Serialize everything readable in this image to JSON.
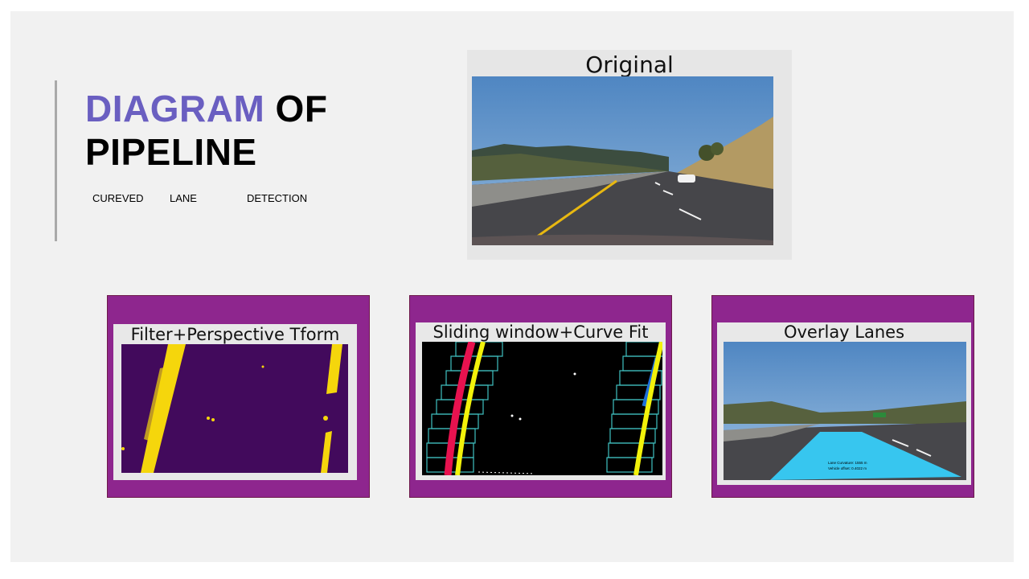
{
  "slide": {
    "title_highlight": "DIAGRAM",
    "title_rest": " OF",
    "title_line2": "PIPELINE",
    "subtitle_words": [
      "CUREVED",
      "LANE",
      "DETECTION"
    ]
  },
  "original": {
    "caption": "Original"
  },
  "stages": [
    {
      "caption": "Filter+Perspective Tform"
    },
    {
      "caption": "Sliding window+Curve Fit"
    },
    {
      "caption": "Overlay Lanes",
      "overlay_text": [
        "Lane Curvature: 1555 m",
        "Vehicle offset: 0.4022 m"
      ]
    }
  ],
  "colors": {
    "accent": "#6a5fc1",
    "panel": "#8e268e",
    "lane_yellow": "#f5d60c",
    "binary_bg": "#420a5c",
    "overlay_lane": "#37c6ef"
  }
}
